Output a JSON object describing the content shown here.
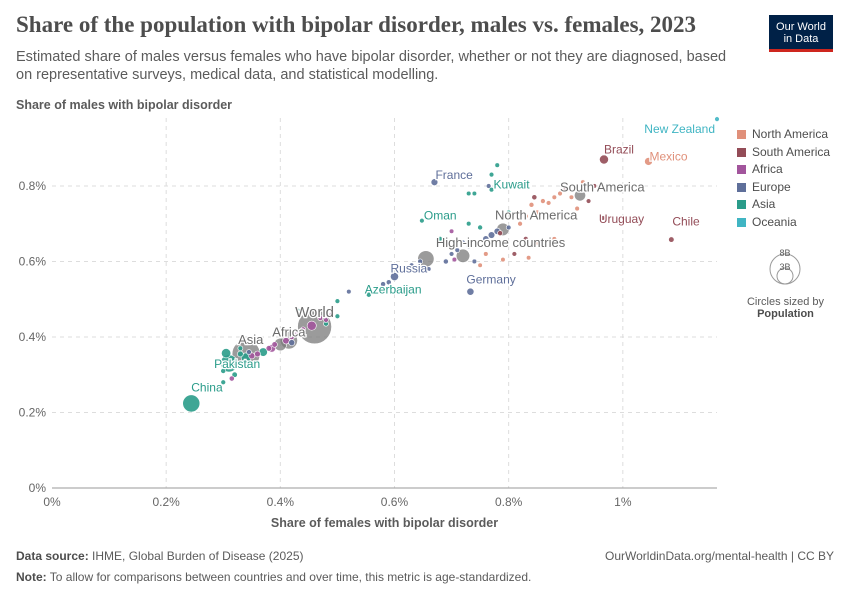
{
  "header": {
    "title": "Share of the population with bipolar disorder, males vs. females, 2023",
    "subtitle": "Estimated share of males versus females who have bipolar disorder, whether or not they are diagnosed, based on representative surveys, medical data, and statistical modelling.",
    "logo_line1": "Our World",
    "logo_line2": "in Data"
  },
  "legend": {
    "items": [
      {
        "label": "North America",
        "color": "#e0907a"
      },
      {
        "label": "South America",
        "color": "#934c57"
      },
      {
        "label": "Africa",
        "color": "#a2559c"
      },
      {
        "label": "Europe",
        "color": "#5f6f9a"
      },
      {
        "label": "Asia",
        "color": "#2a9c8a"
      },
      {
        "label": "Oceania",
        "color": "#40b5c3"
      }
    ],
    "size_big": "8B",
    "size_small": "3B",
    "size_caption": "Circles sized by",
    "size_variable": "Population"
  },
  "footer": {
    "source_label": "Data source:",
    "source_text": "IHME, Global Burden of Disease (2025)",
    "site": "OurWorldinData.org/mental-health | CC BY",
    "note_label": "Note:",
    "note_text": "To allow for comparisons between countries and over time, this metric is age-standardized."
  },
  "chart_data": {
    "type": "scatter",
    "xlabel": "Share of females with bipolar disorder",
    "ylabel": "Share of males with bipolar disorder",
    "x_ticks": [
      {
        "v": 0,
        "label": "0%"
      },
      {
        "v": 0.2,
        "label": "0.2%"
      },
      {
        "v": 0.4,
        "label": "0.4%"
      },
      {
        "v": 0.6,
        "label": "0.6%"
      },
      {
        "v": 0.8,
        "label": "0.8%"
      },
      {
        "v": 1.0,
        "label": "1%"
      }
    ],
    "y_ticks": [
      {
        "v": 0,
        "label": "0%"
      },
      {
        "v": 0.2,
        "label": "0.2%"
      },
      {
        "v": 0.4,
        "label": "0.4%"
      },
      {
        "v": 0.6,
        "label": "0.6%"
      },
      {
        "v": 0.8,
        "label": "0.8%"
      }
    ],
    "xlim": [
      0,
      1.165
    ],
    "ylim": [
      0,
      0.98
    ],
    "grid": true,
    "region_colors": {
      "North America": "#e0907a",
      "South America": "#934c57",
      "Africa": "#a2559c",
      "Europe": "#5f6f9a",
      "Asia": "#2a9c8a",
      "Oceania": "#40b5c3",
      "Aggregate": "#7a7a7a"
    },
    "labeled_points": [
      {
        "label": "New Zealand",
        "x": 1.165,
        "y": 0.977,
        "region": "Oceania",
        "pop": 5
      },
      {
        "label": "Brazil",
        "x": 0.967,
        "y": 0.87,
        "region": "South America",
        "pop": 210
      },
      {
        "label": "Mexico",
        "x": 1.045,
        "y": 0.865,
        "region": "North America",
        "pop": 128
      },
      {
        "label": "France",
        "x": 0.67,
        "y": 0.81,
        "region": "Europe",
        "pop": 68
      },
      {
        "label": "Kuwait",
        "x": 0.77,
        "y": 0.79,
        "region": "Asia",
        "pop": 4
      },
      {
        "label": "South America",
        "x": 0.925,
        "y": 0.775,
        "region": "Aggregate",
        "pop": 430
      },
      {
        "label": "Oman",
        "x": 0.648,
        "y": 0.708,
        "region": "Asia",
        "pop": 5
      },
      {
        "label": "Uruguay",
        "x": 0.965,
        "y": 0.715,
        "region": "South America",
        "pop": 3
      },
      {
        "label": "North America",
        "x": 0.79,
        "y": 0.685,
        "region": "Aggregate",
        "pop": 600
      },
      {
        "label": "Chile",
        "x": 1.085,
        "y": 0.658,
        "region": "South America",
        "pop": 20
      },
      {
        "label": "High-income countries",
        "x": 0.655,
        "y": 0.607,
        "region": "Aggregate",
        "pop": 1250
      },
      {
        "label": "Russia",
        "x": 0.6,
        "y": 0.56,
        "region": "Europe",
        "pop": 144
      },
      {
        "label": "Germany",
        "x": 0.733,
        "y": 0.52,
        "region": "Europe",
        "pop": 84
      },
      {
        "label": "Azerbaijan",
        "x": 0.555,
        "y": 0.512,
        "region": "Asia",
        "pop": 10
      },
      {
        "label": "World",
        "x": 0.46,
        "y": 0.427,
        "region": "Aggregate",
        "pop": 8000
      },
      {
        "label": "Africa",
        "x": 0.415,
        "y": 0.391,
        "region": "Aggregate",
        "pop": 1450
      },
      {
        "label": "Asia",
        "x": 0.34,
        "y": 0.355,
        "region": "Aggregate",
        "pop": 4700
      },
      {
        "label": "Pakistan",
        "x": 0.305,
        "y": 0.357,
        "region": "Asia",
        "pop": 240
      },
      {
        "label": "China",
        "x": 0.244,
        "y": 0.224,
        "region": "Asia",
        "pop": 1410
      }
    ],
    "points": [
      {
        "x": 0.72,
        "y": 0.615,
        "region": "Aggregate",
        "pop": 750
      },
      {
        "x": 0.31,
        "y": 0.33,
        "region": "Asia",
        "pop": 1430
      },
      {
        "x": 0.4,
        "y": 0.38,
        "region": "Aggregate",
        "pop": 600
      },
      {
        "x": 0.455,
        "y": 0.43,
        "region": "Africa",
        "pop": 220
      },
      {
        "x": 0.34,
        "y": 0.345,
        "region": "Asia",
        "pop": 280
      },
      {
        "x": 0.37,
        "y": 0.36,
        "region": "Asia",
        "pop": 170
      },
      {
        "x": 0.385,
        "y": 0.37,
        "region": "Africa",
        "pop": 120
      },
      {
        "x": 0.35,
        "y": 0.35,
        "region": "Africa",
        "pop": 40
      },
      {
        "x": 0.36,
        "y": 0.355,
        "region": "Africa",
        "pop": 30
      },
      {
        "x": 0.38,
        "y": 0.37,
        "region": "Africa",
        "pop": 25
      },
      {
        "x": 0.39,
        "y": 0.38,
        "region": "Africa",
        "pop": 20
      },
      {
        "x": 0.41,
        "y": 0.39,
        "region": "Africa",
        "pop": 60
      },
      {
        "x": 0.42,
        "y": 0.4,
        "region": "Africa",
        "pop": 15
      },
      {
        "x": 0.43,
        "y": 0.41,
        "region": "Africa",
        "pop": 12
      },
      {
        "x": 0.44,
        "y": 0.42,
        "region": "Africa",
        "pop": 10
      },
      {
        "x": 0.47,
        "y": 0.45,
        "region": "Africa",
        "pop": 8
      },
      {
        "x": 0.48,
        "y": 0.445,
        "region": "Africa",
        "pop": 6
      },
      {
        "x": 0.49,
        "y": 0.46,
        "region": "Africa",
        "pop": 5
      },
      {
        "x": 0.5,
        "y": 0.455,
        "region": "Asia",
        "pop": 6
      },
      {
        "x": 0.48,
        "y": 0.435,
        "region": "Asia",
        "pop": 7
      },
      {
        "x": 0.43,
        "y": 0.47,
        "region": "Asia",
        "pop": 8
      },
      {
        "x": 0.33,
        "y": 0.355,
        "region": "Asia",
        "pop": 30
      },
      {
        "x": 0.32,
        "y": 0.3,
        "region": "Asia",
        "pop": 18
      },
      {
        "x": 0.3,
        "y": 0.31,
        "region": "Asia",
        "pop": 10
      },
      {
        "x": 0.315,
        "y": 0.29,
        "region": "Africa",
        "pop": 12
      },
      {
        "x": 0.3,
        "y": 0.28,
        "region": "Asia",
        "pop": 6
      },
      {
        "x": 0.33,
        "y": 0.37,
        "region": "Asia",
        "pop": 8
      },
      {
        "x": 0.345,
        "y": 0.36,
        "region": "Europe",
        "pop": 10
      },
      {
        "x": 0.42,
        "y": 0.385,
        "region": "Europe",
        "pop": 40
      },
      {
        "x": 0.52,
        "y": 0.52,
        "region": "Europe",
        "pop": 4
      },
      {
        "x": 0.5,
        "y": 0.495,
        "region": "Asia",
        "pop": 6
      },
      {
        "x": 0.58,
        "y": 0.54,
        "region": "Europe",
        "pop": 9
      },
      {
        "x": 0.59,
        "y": 0.545,
        "region": "Europe",
        "pop": 10
      },
      {
        "x": 0.57,
        "y": 0.53,
        "region": "Asia",
        "pop": 5
      },
      {
        "x": 0.62,
        "y": 0.58,
        "region": "Europe",
        "pop": 6
      },
      {
        "x": 0.63,
        "y": 0.59,
        "region": "Europe",
        "pop": 5
      },
      {
        "x": 0.645,
        "y": 0.6,
        "region": "Europe",
        "pop": 8
      },
      {
        "x": 0.66,
        "y": 0.58,
        "region": "Europe",
        "pop": 3
      },
      {
        "x": 0.69,
        "y": 0.6,
        "region": "Europe",
        "pop": 10
      },
      {
        "x": 0.7,
        "y": 0.62,
        "region": "Europe",
        "pop": 5
      },
      {
        "x": 0.705,
        "y": 0.605,
        "region": "Africa",
        "pop": 4
      },
      {
        "x": 0.71,
        "y": 0.63,
        "region": "Europe",
        "pop": 6
      },
      {
        "x": 0.73,
        "y": 0.64,
        "region": "Europe",
        "pop": 5
      },
      {
        "x": 0.74,
        "y": 0.6,
        "region": "Europe",
        "pop": 4
      },
      {
        "x": 0.75,
        "y": 0.59,
        "region": "North America",
        "pop": 3
      },
      {
        "x": 0.76,
        "y": 0.66,
        "region": "Europe",
        "pop": 40
      },
      {
        "x": 0.77,
        "y": 0.67,
        "region": "Europe",
        "pop": 60
      },
      {
        "x": 0.78,
        "y": 0.68,
        "region": "Europe",
        "pop": 50
      },
      {
        "x": 0.785,
        "y": 0.675,
        "region": "South America",
        "pop": 10
      },
      {
        "x": 0.8,
        "y": 0.69,
        "region": "Europe",
        "pop": 6
      },
      {
        "x": 0.81,
        "y": 0.62,
        "region": "South America",
        "pop": 5
      },
      {
        "x": 0.75,
        "y": 0.69,
        "region": "Asia",
        "pop": 8
      },
      {
        "x": 0.73,
        "y": 0.7,
        "region": "Asia",
        "pop": 4
      },
      {
        "x": 0.8,
        "y": 0.73,
        "region": "Asia",
        "pop": 3
      },
      {
        "x": 0.77,
        "y": 0.83,
        "region": "Asia",
        "pop": 5
      },
      {
        "x": 0.78,
        "y": 0.855,
        "region": "Asia",
        "pop": 4
      },
      {
        "x": 0.765,
        "y": 0.8,
        "region": "Europe",
        "pop": 6
      },
      {
        "x": 0.73,
        "y": 0.78,
        "region": "Asia",
        "pop": 4
      },
      {
        "x": 0.74,
        "y": 0.78,
        "region": "Asia",
        "pop": 3
      },
      {
        "x": 0.72,
        "y": 0.65,
        "region": "Europe",
        "pop": 9
      },
      {
        "x": 0.68,
        "y": 0.66,
        "region": "Asia",
        "pop": 5
      },
      {
        "x": 0.7,
        "y": 0.68,
        "region": "Africa",
        "pop": 3
      },
      {
        "x": 0.76,
        "y": 0.62,
        "region": "North America",
        "pop": 4
      },
      {
        "x": 0.79,
        "y": 0.605,
        "region": "North America",
        "pop": 3
      },
      {
        "x": 0.82,
        "y": 0.7,
        "region": "North America",
        "pop": 6
      },
      {
        "x": 0.83,
        "y": 0.72,
        "region": "North America",
        "pop": 10
      },
      {
        "x": 0.84,
        "y": 0.75,
        "region": "North America",
        "pop": 8
      },
      {
        "x": 0.845,
        "y": 0.77,
        "region": "South America",
        "pop": 12
      },
      {
        "x": 0.85,
        "y": 0.73,
        "region": "North America",
        "pop": 5
      },
      {
        "x": 0.86,
        "y": 0.76,
        "region": "North America",
        "pop": 6
      },
      {
        "x": 0.87,
        "y": 0.755,
        "region": "North America",
        "pop": 5
      },
      {
        "x": 0.88,
        "y": 0.77,
        "region": "North America",
        "pop": 4
      },
      {
        "x": 0.89,
        "y": 0.78,
        "region": "North America",
        "pop": 5
      },
      {
        "x": 0.9,
        "y": 0.79,
        "region": "South America",
        "pop": 8
      },
      {
        "x": 0.91,
        "y": 0.77,
        "region": "North America",
        "pop": 3
      },
      {
        "x": 0.92,
        "y": 0.74,
        "region": "North America",
        "pop": 4
      },
      {
        "x": 0.93,
        "y": 0.81,
        "region": "North America",
        "pop": 3
      },
      {
        "x": 0.94,
        "y": 0.76,
        "region": "South America",
        "pop": 5
      },
      {
        "x": 0.95,
        "y": 0.8,
        "region": "South America",
        "pop": 4
      },
      {
        "x": 0.88,
        "y": 0.66,
        "region": "North America",
        "pop": 3
      },
      {
        "x": 0.85,
        "y": 0.65,
        "region": "North America",
        "pop": 3
      },
      {
        "x": 0.83,
        "y": 0.66,
        "region": "South America",
        "pop": 6
      },
      {
        "x": 0.835,
        "y": 0.61,
        "region": "North America",
        "pop": 3
      }
    ]
  }
}
